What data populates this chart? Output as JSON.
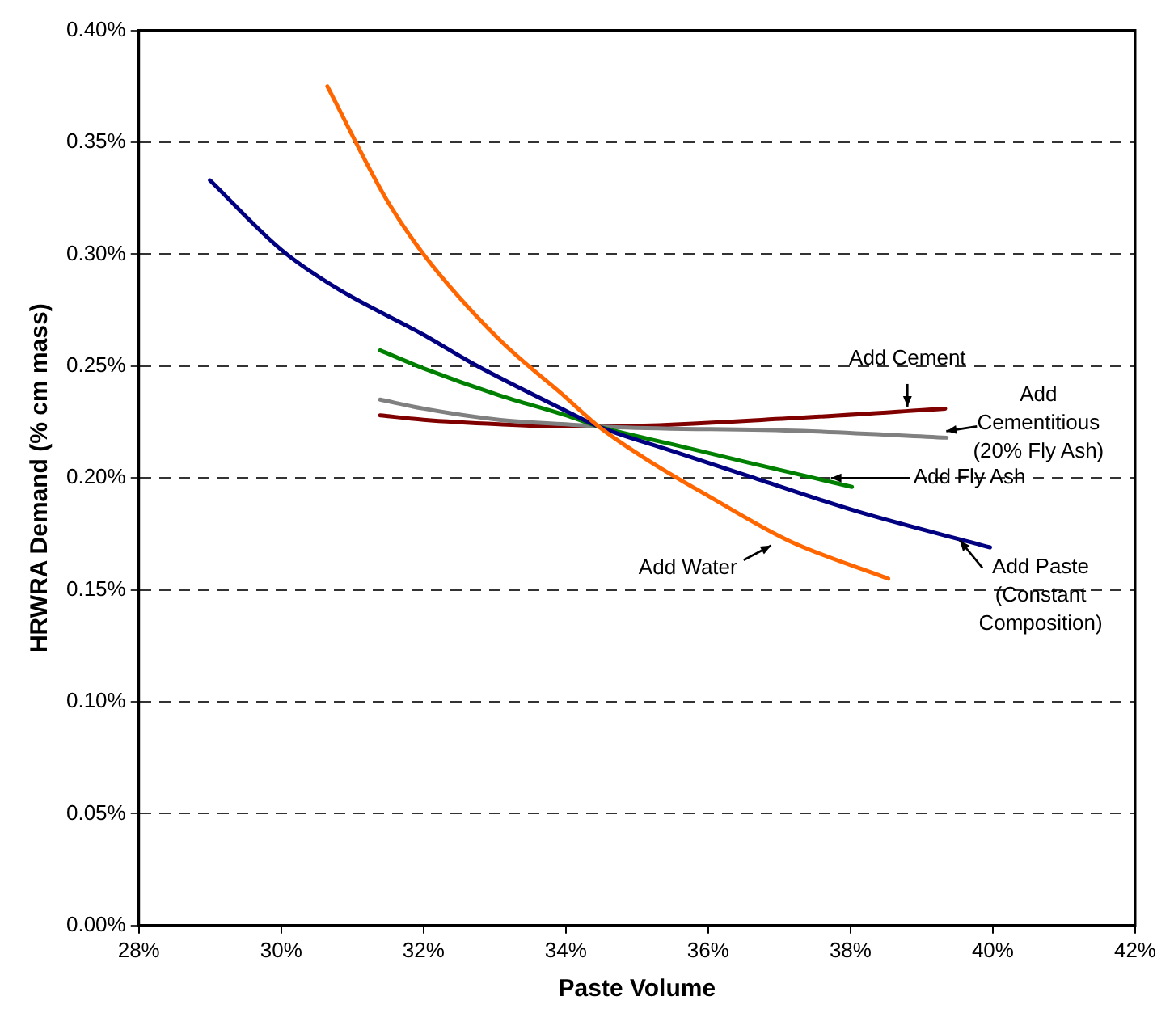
{
  "chart_data": {
    "type": "line",
    "xlabel": "Paste Volume",
    "ylabel": "HRWRA Demand (% cm mass)",
    "xlim": [
      28,
      42
    ],
    "xticks": [
      {
        "value": 28,
        "label": "28%"
      },
      {
        "value": 30,
        "label": "30%"
      },
      {
        "value": 32,
        "label": "32%"
      },
      {
        "value": 34,
        "label": "34%"
      },
      {
        "value": 36,
        "label": "36%"
      },
      {
        "value": 38,
        "label": "38%"
      },
      {
        "value": 40,
        "label": "40%"
      },
      {
        "value": 42,
        "label": "42%"
      }
    ],
    "ylim": [
      0,
      0.4
    ],
    "yticks": [
      {
        "value": 0,
        "label": "0.00%"
      },
      {
        "value": 0.05,
        "label": "0.05%"
      },
      {
        "value": 0.1,
        "label": "0.10%"
      },
      {
        "value": 0.15,
        "label": "0.15%"
      },
      {
        "value": 0.2,
        "label": "0.20%"
      },
      {
        "value": 0.25,
        "label": "0.25%"
      },
      {
        "value": 0.3,
        "label": "0.30%"
      },
      {
        "value": 0.35,
        "label": "0.35%"
      },
      {
        "value": 0.4,
        "label": "0.40%"
      }
    ],
    "grid": "y",
    "legend": false,
    "marker": "none",
    "line_style": "solid",
    "series": [
      {
        "color": "#ff6600",
        "x": [
          30.65,
          31.47,
          32,
          33.06,
          34,
          34.46,
          35.2,
          36,
          37.13,
          38.53
        ],
        "values": [
          0.375,
          0.325,
          0.3,
          0.262,
          0.236,
          0.223,
          0.207,
          0.192,
          0.172,
          0.155
        ]
      },
      {
        "color": "#000080",
        "x": [
          29,
          30,
          30.77,
          32,
          32.7,
          34,
          34.46,
          35.4,
          36.55,
          38.1,
          39.96
        ],
        "values": [
          0.333,
          0.302,
          0.285,
          0.264,
          0.251,
          0.23,
          0.223,
          0.213,
          0.201,
          0.185,
          0.169
        ]
      },
      {
        "color": "#008000",
        "x": [
          31.39,
          32,
          33.06,
          34,
          34.46,
          35.5,
          36.55,
          38.02
        ],
        "values": [
          0.257,
          0.249,
          0.237,
          0.228,
          0.223,
          0.215,
          0.207,
          0.196
        ]
      },
      {
        "color": "#808080",
        "x": [
          31.39,
          32,
          33.06,
          34,
          34.46,
          37.33,
          39.35
        ],
        "values": [
          0.235,
          0.231,
          0.226,
          0.224,
          0.223,
          0.221,
          0.218
        ]
      },
      {
        "color": "#800000",
        "x": [
          31.39,
          32,
          33.06,
          34,
          34.46,
          37.33,
          39.33
        ],
        "values": [
          0.228,
          0.226,
          0.224,
          0.223,
          0.223,
          0.227,
          0.231
        ]
      }
    ],
    "annotations": [
      {
        "text": "Add Cement",
        "x": 38.8,
        "y": 0.229
      },
      {
        "text": "Add\nCementitious\n(20% Fly Ash)",
        "x": 39.3,
        "y": 0.218
      },
      {
        "text": "Add Fly Ash",
        "x": 37.68,
        "y": 0.2
      },
      {
        "text": "Add Water",
        "x": 36.93,
        "y": 0.1727
      },
      {
        "text": "Add Paste\n(Constant\nComposition)",
        "x": 39.49,
        "y": 0.175
      }
    ]
  }
}
